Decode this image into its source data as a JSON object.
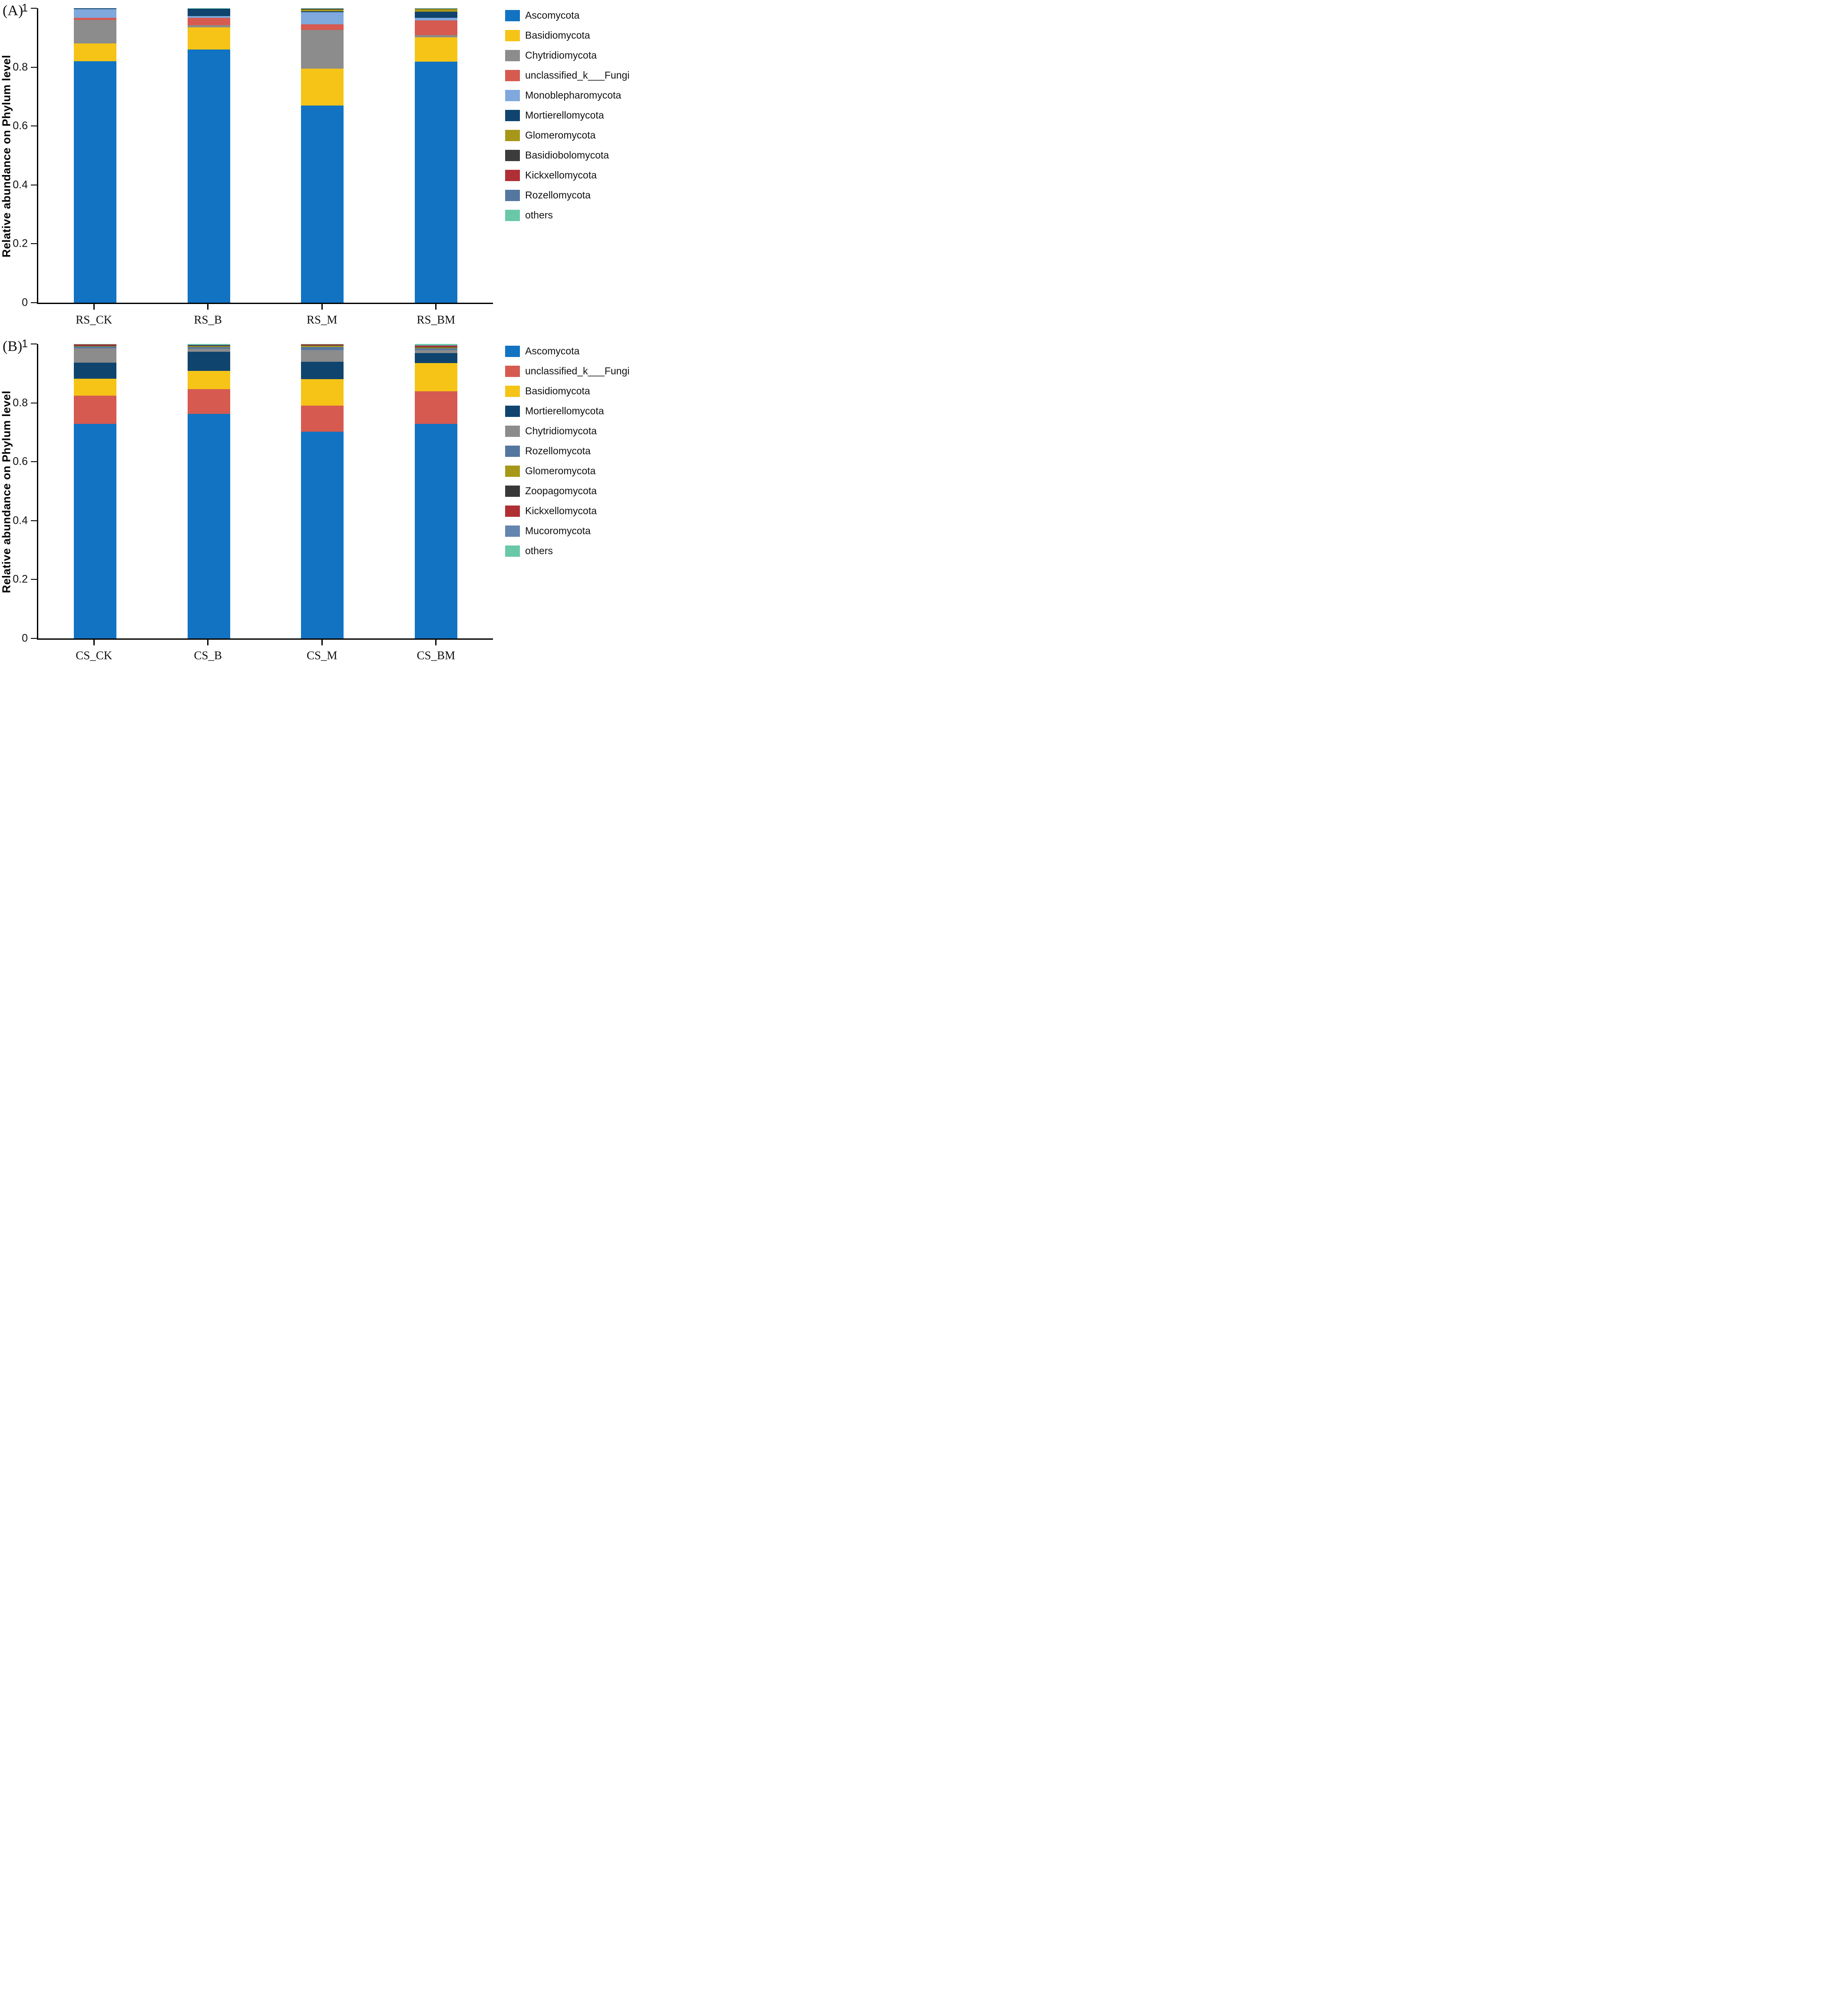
{
  "figure": {
    "panels": [
      {
        "letter": "(A)",
        "y_axis_title": "Relative abundance on Phylum level"
      },
      {
        "letter": "(B)",
        "y_axis_title": "Relative abundance on Phylum level"
      }
    ]
  },
  "colors": {
    "Ascomycota": "#1173C2",
    "Basidiomycota": "#F5C417",
    "Chytridiomycota": "#8C8C8C",
    "unclassified_k___Fungi": "#D65A50",
    "Monoblepharomycota": "#7FA8DD",
    "Mortierellomycota": "#0F446E",
    "Glomeromycota": "#A79719",
    "Basidiobolomycota": "#3C3C3C",
    "Kickxellomycota": "#B02F35",
    "Rozellomycota": "#54779F",
    "Zoopagomycota": "#383838",
    "Mucoromycota": "#6386AF",
    "others": "#69C8A7"
  },
  "chart_data": [
    {
      "type": "bar",
      "stacked": true,
      "panel": "A",
      "ylabel": "Relative abundance on Phylum level",
      "ylim": [
        0,
        1
      ],
      "yticks": [
        0,
        0.2,
        0.4,
        0.6,
        0.8,
        1
      ],
      "grid": false,
      "legend_position": "right",
      "categories": [
        "RS_CK",
        "RS_B",
        "RS_M",
        "RS_BM"
      ],
      "series": [
        {
          "name": "Ascomycota",
          "values": [
            0.82,
            0.86,
            0.67,
            0.818
          ]
        },
        {
          "name": "Basidiomycota",
          "values": [
            0.061,
            0.075,
            0.125,
            0.083
          ]
        },
        {
          "name": "Chytridiomycota",
          "values": [
            0.079,
            0.007,
            0.132,
            0.008
          ]
        },
        {
          "name": "unclassified_k___Fungi",
          "values": [
            0.008,
            0.026,
            0.018,
            0.05
          ]
        },
        {
          "name": "Monoblepharomycota",
          "values": [
            0.029,
            0.006,
            0.042,
            0.009
          ]
        },
        {
          "name": "Mortierellomycota",
          "values": [
            0.003,
            0.024,
            0.003,
            0.021
          ]
        },
        {
          "name": "Glomeromycota",
          "values": [
            0.0,
            0.001,
            0.006,
            0.008
          ]
        },
        {
          "name": "Basidiobolomycota",
          "values": [
            0.0,
            0.0,
            0.003,
            0.001
          ]
        },
        {
          "name": "Kickxellomycota",
          "values": [
            0.0,
            0.0,
            0.0,
            0.001
          ]
        },
        {
          "name": "Rozellomycota",
          "values": [
            0.0,
            0.0,
            0.0,
            0.0
          ]
        },
        {
          "name": "others",
          "values": [
            0.0,
            0.001,
            0.001,
            0.001
          ]
        }
      ]
    },
    {
      "type": "bar",
      "stacked": true,
      "panel": "B",
      "ylabel": "Relative abundance on Phylum level",
      "ylim": [
        0,
        1
      ],
      "yticks": [
        0,
        0.2,
        0.4,
        0.6,
        0.8,
        1
      ],
      "grid": false,
      "legend_position": "right",
      "categories": [
        "CS_CK",
        "CS_B",
        "CS_M",
        "CS_BM"
      ],
      "series": [
        {
          "name": "Ascomycota",
          "values": [
            0.729,
            0.763,
            0.702,
            0.729
          ]
        },
        {
          "name": "unclassified_k___Fungi",
          "values": [
            0.095,
            0.083,
            0.089,
            0.111
          ]
        },
        {
          "name": "Basidiomycota",
          "values": [
            0.058,
            0.062,
            0.09,
            0.095
          ]
        },
        {
          "name": "Mortierellomycota",
          "values": [
            0.055,
            0.065,
            0.059,
            0.034
          ]
        },
        {
          "name": "Chytridiomycota",
          "values": [
            0.048,
            0.011,
            0.039,
            0.01
          ]
        },
        {
          "name": "Rozellomycota",
          "values": [
            0.006,
            0.006,
            0.011,
            0.006
          ]
        },
        {
          "name": "Glomeromycota",
          "values": [
            0.002,
            0.002,
            0.004,
            0.003
          ]
        },
        {
          "name": "Zoopagomycota",
          "values": [
            0.001,
            0.003,
            0.001,
            0.002
          ]
        },
        {
          "name": "Kickxellomycota",
          "values": [
            0.004,
            0.001,
            0.003,
            0.004
          ]
        },
        {
          "name": "Mucoromycota",
          "values": [
            0.001,
            0.001,
            0.001,
            0.002
          ]
        },
        {
          "name": "others",
          "values": [
            0.001,
            0.003,
            0.001,
            0.004
          ]
        }
      ]
    }
  ]
}
